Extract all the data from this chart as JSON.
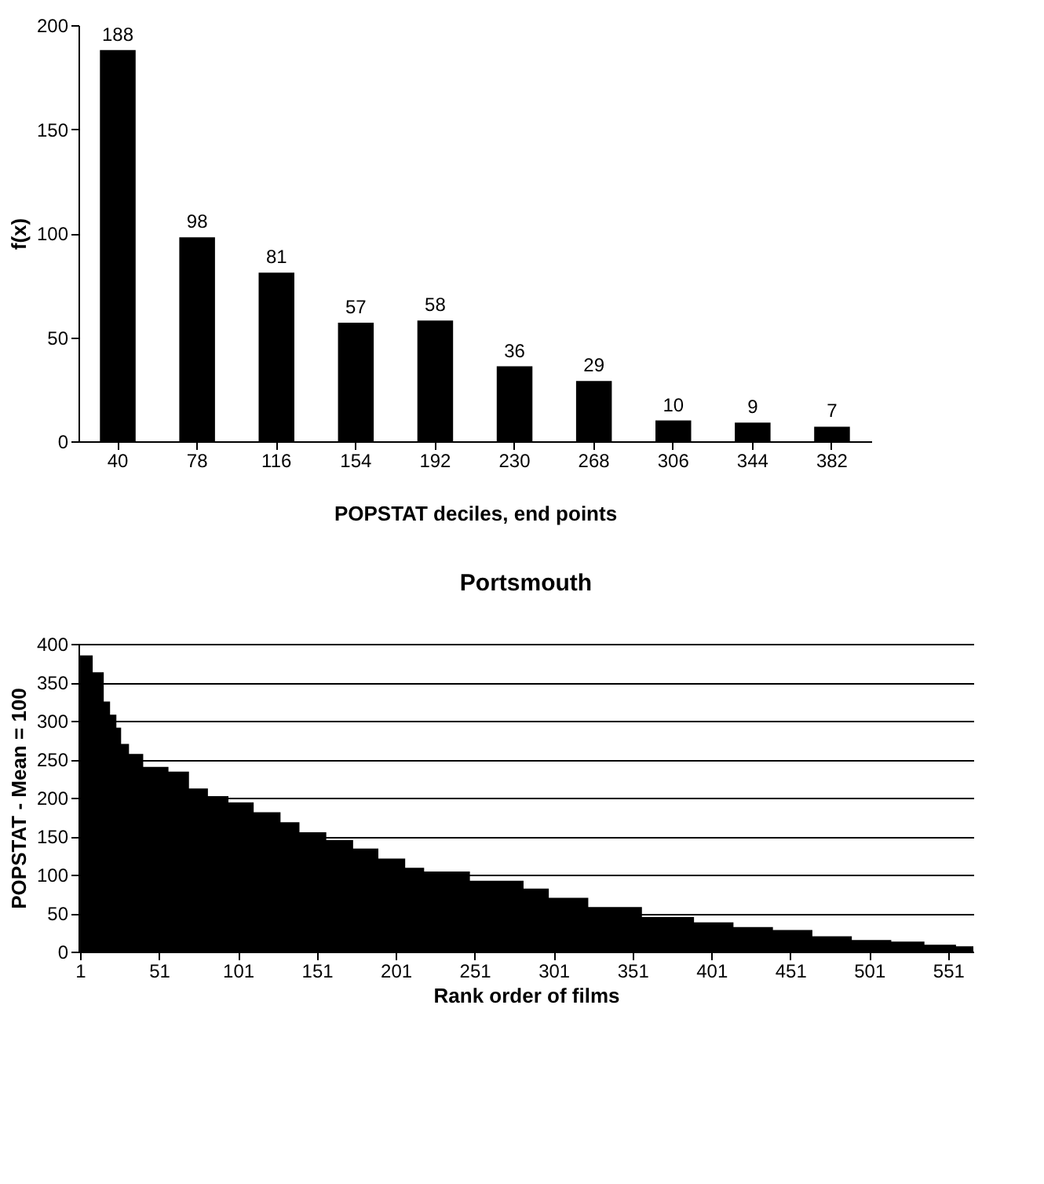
{
  "chart_data": [
    {
      "type": "bar",
      "xlabel": "POPSTAT deciles, end points",
      "ylabel": "f(x)",
      "categories": [
        "40",
        "78",
        "116",
        "154",
        "192",
        "230",
        "268",
        "306",
        "344",
        "382"
      ],
      "values": [
        188,
        98,
        81,
        57,
        58,
        36,
        29,
        10,
        9,
        7
      ],
      "color": "#000000",
      "ylim": [
        0,
        200
      ],
      "yticks": [
        0,
        50,
        100,
        150,
        200
      ],
      "data_labels": true,
      "grid": false
    },
    {
      "type": "area",
      "title": "Portsmouth",
      "xlabel": "Rank order of films",
      "ylabel": "POPSTAT - Mean = 100",
      "x": [
        1,
        9,
        16,
        20,
        24,
        27,
        32,
        41,
        57,
        70,
        82,
        95,
        111,
        128,
        140,
        157,
        174,
        190,
        207,
        219,
        248,
        282,
        298,
        323,
        357,
        390,
        415,
        440,
        465,
        490,
        515,
        536,
        556,
        567
      ],
      "values": [
        385,
        363,
        325,
        308,
        291,
        270,
        257,
        240,
        234,
        212,
        202,
        194,
        181,
        168,
        155,
        145,
        134,
        121,
        109,
        104,
        92,
        82,
        70,
        58,
        45,
        38,
        32,
        28,
        20,
        15,
        13,
        9,
        7,
        5
      ],
      "color": "#000000",
      "xlim": [
        0,
        567
      ],
      "xticks": [
        1,
        51,
        101,
        151,
        201,
        251,
        301,
        351,
        401,
        451,
        501,
        551
      ],
      "ylim": [
        0,
        400
      ],
      "yticks": [
        0,
        50,
        100,
        150,
        200,
        250,
        300,
        350,
        400
      ],
      "grid": "y"
    }
  ]
}
